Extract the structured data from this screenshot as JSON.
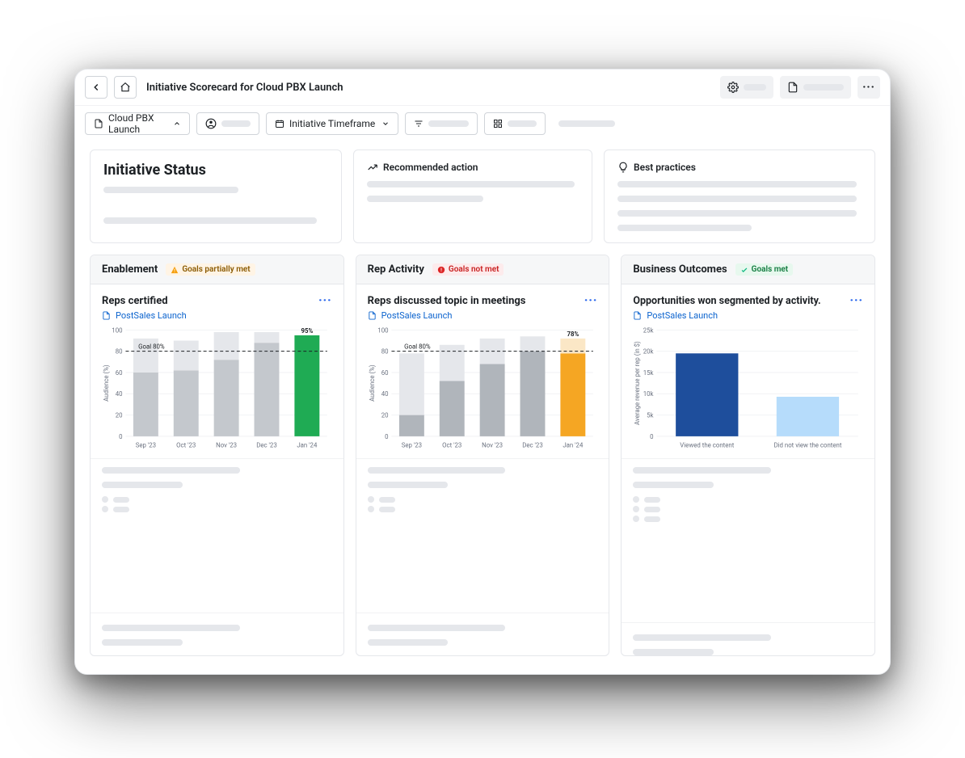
{
  "topbar": {
    "title": "Initiative Scorecard for Cloud PBX Launch"
  },
  "filter": {
    "initiative_label": "Cloud PBX Launch",
    "timeframe_label": "Initiative Timeframe"
  },
  "status": {
    "title": "Initiative Status",
    "recommended_title": "Recommended action",
    "best_practices_title": "Best practices"
  },
  "columns": {
    "enablement": {
      "title": "Enablement",
      "badge_text": "Goals partially met",
      "badge_bg": "#fff4e5",
      "badge_fg": "#8a5a00",
      "badge_icon_color": "#f59e0b",
      "chart": {
        "title": "Reps certified",
        "sub": "PostSales Launch",
        "type": "bar",
        "y_label": "Audience (%)",
        "ylim": [
          0,
          100
        ],
        "ytick_step": 20,
        "goal_pct": 80,
        "goal_label": "Goal 80%",
        "categories": [
          "Sep '23",
          "Oct '23",
          "Nov '23",
          "Dec '23",
          "Jan '24"
        ],
        "bars": [
          {
            "segments": [
              {
                "v": 60,
                "c": "#c4c8cd"
              },
              {
                "v": 32,
                "c": "#e5e7eb"
              }
            ]
          },
          {
            "segments": [
              {
                "v": 62,
                "c": "#c4c8cd"
              },
              {
                "v": 28,
                "c": "#e5e7eb"
              }
            ]
          },
          {
            "segments": [
              {
                "v": 72,
                "c": "#c4c8cd"
              },
              {
                "v": 26,
                "c": "#e5e7eb"
              }
            ]
          },
          {
            "segments": [
              {
                "v": 88,
                "c": "#c4c8cd"
              },
              {
                "v": 10,
                "c": "#e5e7eb"
              }
            ]
          },
          {
            "segments": [
              {
                "v": 95,
                "c": "#1fab54"
              }
            ],
            "label": "95%"
          }
        ],
        "grid_color": "#f1f2f4",
        "axis_color": "#6b7280",
        "font_size_axis": 8
      }
    },
    "rep_activity": {
      "title": "Rep Activity",
      "badge_text": "Goals not met",
      "badge_bg": "#fdebec",
      "badge_fg": "#c81e1e",
      "badge_icon_color": "#dc2626",
      "chart": {
        "title": "Reps discussed topic in meetings",
        "sub": "PostSales Launch",
        "type": "bar",
        "y_label": "Audience (%)",
        "ylim": [
          0,
          100
        ],
        "ytick_step": 20,
        "goal_pct": 80,
        "goal_label": "Goal 80%",
        "categories": [
          "Sep '23",
          "Oct '23",
          "Nov '23",
          "Dec '23",
          "Jan '24"
        ],
        "bars": [
          {
            "segments": [
              {
                "v": 20,
                "c": "#b0b5bb"
              },
              {
                "v": 58,
                "c": "#e5e7eb"
              }
            ]
          },
          {
            "segments": [
              {
                "v": 52,
                "c": "#b0b5bb"
              },
              {
                "v": 34,
                "c": "#e5e7eb"
              }
            ]
          },
          {
            "segments": [
              {
                "v": 68,
                "c": "#b0b5bb"
              },
              {
                "v": 24,
                "c": "#e5e7eb"
              }
            ]
          },
          {
            "segments": [
              {
                "v": 80,
                "c": "#b0b5bb"
              },
              {
                "v": 14,
                "c": "#e5e7eb"
              }
            ]
          },
          {
            "segments": [
              {
                "v": 78,
                "c": "#f5a623"
              },
              {
                "v": 14,
                "c": "#fbe7c6"
              }
            ],
            "label": "78%"
          }
        ],
        "grid_color": "#f1f2f4",
        "axis_color": "#6b7280",
        "font_size_axis": 8
      }
    },
    "business": {
      "title": "Business Outcomes",
      "badge_text": "Goals met",
      "badge_bg": "#e7f8ee",
      "badge_fg": "#0f7a3d",
      "badge_icon_color": "#10b981",
      "chart": {
        "title": "Opportunities won segmented by activity.",
        "sub": "PostSales Launch",
        "type": "bar",
        "y_label": "Average revenue per rep (in $)",
        "ylim": [
          0,
          25000
        ],
        "ytick_step": 5000,
        "tick_labels": [
          "0",
          "5k",
          "10k",
          "15k",
          "20k",
          "25k"
        ],
        "categories": [
          "Viewed the content",
          "Did not view the content"
        ],
        "bars": [
          {
            "segments": [
              {
                "v": 19500,
                "c": "#1e4e9c"
              }
            ]
          },
          {
            "segments": [
              {
                "v": 9300,
                "c": "#b6dcfb"
              }
            ]
          }
        ],
        "grid_color": "#f1f2f4",
        "axis_color": "#6b7280",
        "font_size_axis": 8
      }
    }
  },
  "placeholder_bars": {
    "enablement": [
      {
        "segs": [
          36,
          40
        ]
      },
      {
        "segs": [
          40,
          46
        ]
      },
      {
        "segs": [
          72,
          16
        ]
      },
      {
        "segs": [
          56,
          38
        ]
      },
      {
        "segs": [
          84,
          0
        ]
      }
    ],
    "rep": [
      {
        "segs": [
          18,
          26
        ]
      },
      {
        "segs": [
          28,
          28
        ]
      },
      {
        "segs": [
          32,
          38
        ]
      },
      {
        "segs": [
          44,
          48
        ]
      },
      {
        "segs": [
          60,
          40
        ]
      }
    ],
    "biz": [
      {
        "segs": [
          40,
          0
        ]
      },
      {
        "segs": [
          100,
          0
        ]
      }
    ]
  }
}
